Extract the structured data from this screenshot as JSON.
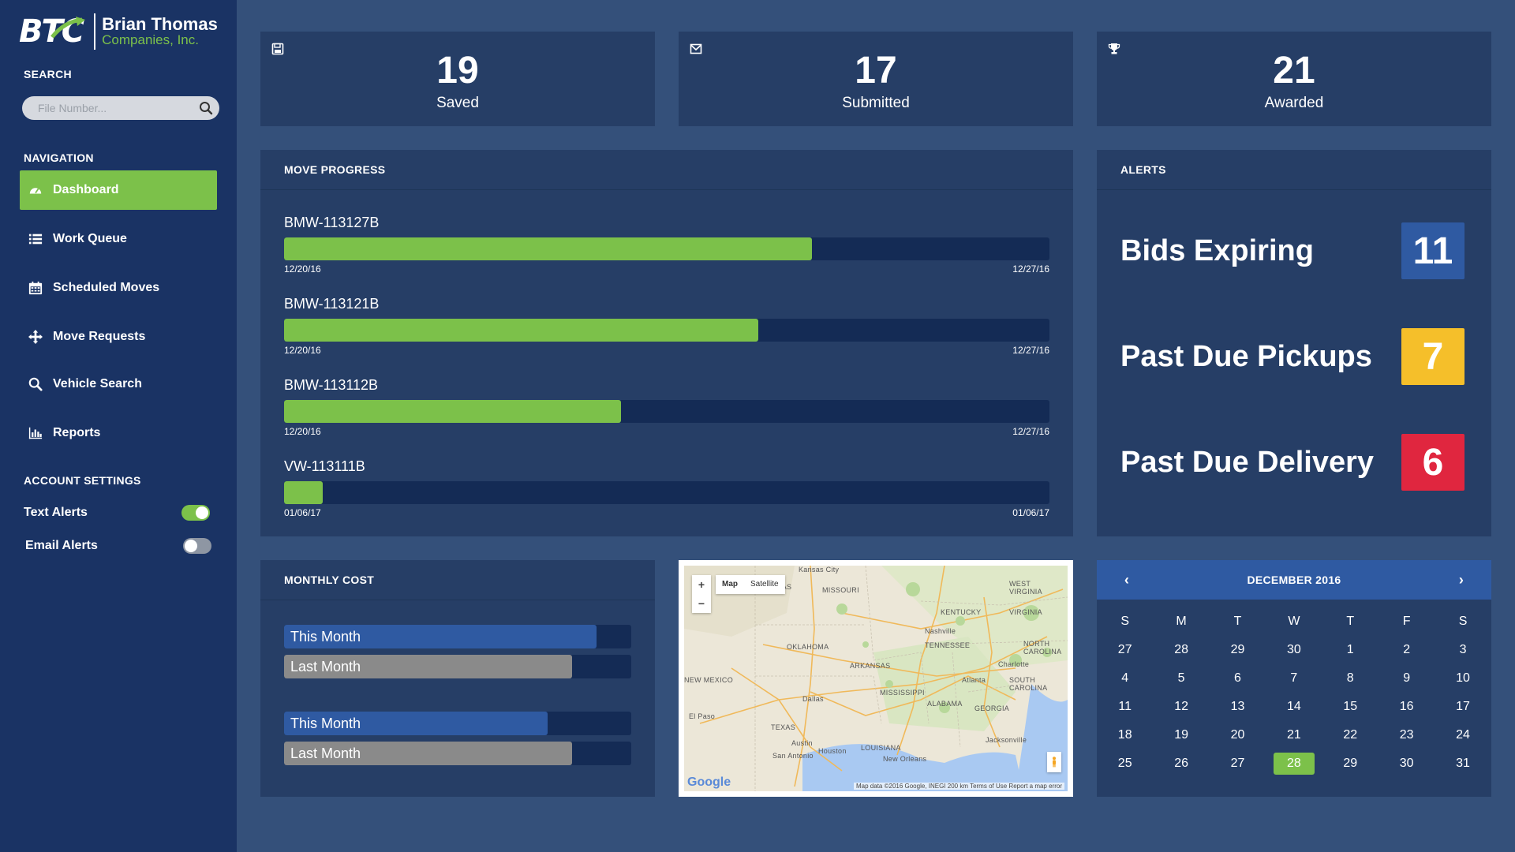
{
  "brand": {
    "mark": "BTC",
    "name_line1": "Brian Thomas",
    "name_line2": "Companies, Inc."
  },
  "search": {
    "label": "SEARCH",
    "placeholder": "File Number..."
  },
  "navigation": {
    "label": "NAVIGATION",
    "items": [
      {
        "label": "Dashboard",
        "icon": "dashboard-icon",
        "active": true
      },
      {
        "label": "Work Queue",
        "icon": "list-icon"
      },
      {
        "label": "Scheduled Moves",
        "icon": "calendar-icon"
      },
      {
        "label": "Move Requests",
        "icon": "move-icon"
      },
      {
        "label": "Vehicle Search",
        "icon": "search-icon"
      },
      {
        "label": "Reports",
        "icon": "bar-chart-icon"
      }
    ]
  },
  "account_settings": {
    "label": "ACCOUNT SETTINGS",
    "text_alerts": {
      "label": "Text Alerts",
      "on": true
    },
    "email_alerts": {
      "label": "Email Alerts",
      "on": false
    }
  },
  "stats": [
    {
      "value": "19",
      "label": "Saved",
      "icon": "save-icon"
    },
    {
      "value": "17",
      "label": "Submitted",
      "icon": "envelope-icon"
    },
    {
      "value": "21",
      "label": "Awarded",
      "icon": "trophy-icon"
    }
  ],
  "move_progress": {
    "title": "MOVE PROGRESS",
    "items": [
      {
        "id": "BMW-113127B",
        "start": "12/20/16",
        "end": "12/27/16",
        "progress": 0.69
      },
      {
        "id": "BMW-113121B",
        "start": "12/20/16",
        "end": "12/27/16",
        "progress": 0.62
      },
      {
        "id": "BMW-113112B",
        "start": "12/20/16",
        "end": "12/27/16",
        "progress": 0.44
      },
      {
        "id": "VW-113111B",
        "start": "01/06/17",
        "end": "01/06/17",
        "progress": 0.05
      }
    ]
  },
  "alerts": {
    "title": "ALERTS",
    "items": [
      {
        "label": "Bids Expiring",
        "count": "11",
        "color": "#2f5aa2"
      },
      {
        "label": "Past Due Pickups",
        "count": "7",
        "color": "#f5bf2a"
      },
      {
        "label": "Past Due Delivery",
        "count": "6",
        "color": "#e0263f"
      }
    ]
  },
  "monthly_cost": {
    "title": "MONTHLY COST",
    "groups": [
      [
        {
          "label": "This Month",
          "fraction": 0.9,
          "kind": "this"
        },
        {
          "label": "Last Month",
          "fraction": 0.83,
          "kind": "last"
        }
      ],
      [
        {
          "label": "This Month",
          "fraction": 0.76,
          "kind": "this"
        },
        {
          "label": "Last Month",
          "fraction": 0.83,
          "kind": "last"
        }
      ]
    ]
  },
  "map": {
    "type_map": "Map",
    "type_satellite": "Satellite",
    "zoom_in": "+",
    "zoom_out": "−",
    "attribution": "Map data ©2016 Google, INEGI   200 km   Terms of Use   Report a map error",
    "google": "Google",
    "places": [
      "Kansas City",
      "MISSOURI",
      "KANSAS",
      "WEST VIRGINIA",
      "KENTUCKY",
      "VIRGINIA",
      "Nashville",
      "TENNESSEE",
      "NORTH CAROLINA",
      "OKLAHOMA",
      "ARKANSAS",
      "Charlotte",
      "NEW MEXICO",
      "Atlanta",
      "SOUTH CAROLINA",
      "MISSISSIPPI",
      "ALABAMA",
      "Dallas",
      "GEORGIA",
      "El Paso",
      "TEXAS",
      "Austin",
      "Houston",
      "LOUISIANA",
      "Jacksonville",
      "San Antonio",
      "New Orleans"
    ]
  },
  "calendar": {
    "month": "DECEMBER 2016",
    "prev": "‹",
    "next": "›",
    "weekdays": [
      "S",
      "M",
      "T",
      "W",
      "T",
      "F",
      "S"
    ],
    "weeks": [
      [
        "27",
        "28",
        "29",
        "30",
        "1",
        "2",
        "3"
      ],
      [
        "4",
        "5",
        "6",
        "7",
        "8",
        "9",
        "10"
      ],
      [
        "11",
        "12",
        "13",
        "14",
        "15",
        "16",
        "17"
      ],
      [
        "18",
        "19",
        "20",
        "21",
        "22",
        "23",
        "24"
      ],
      [
        "25",
        "26",
        "27",
        "28",
        "29",
        "30",
        "31"
      ]
    ],
    "today": "28"
  },
  "colors": {
    "accent_green": "#7cc14a",
    "sidebar": "#1a3364",
    "background": "#34507a",
    "card": "#263e66",
    "blue": "#2f5aa2"
  }
}
